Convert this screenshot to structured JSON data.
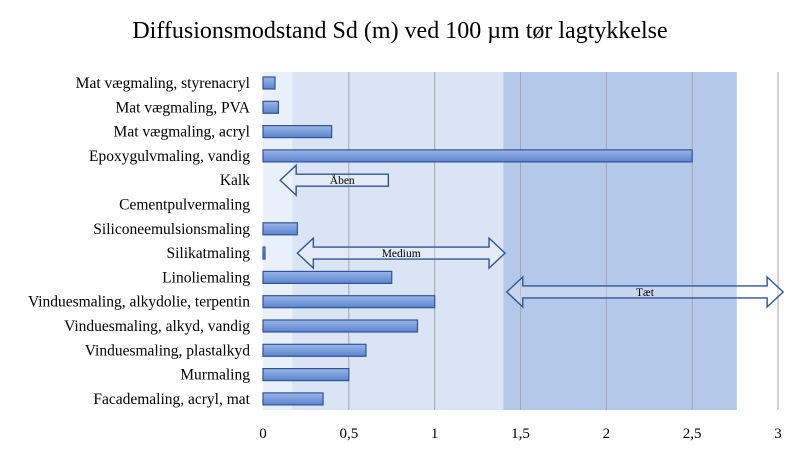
{
  "chart_data": {
    "type": "bar",
    "orientation": "horizontal",
    "title": "Diffusionsmodstand Sd (m) ved 100 µm tør lagtykkelse",
    "xlabel": "",
    "ylabel": "",
    "xlim": [
      0,
      3
    ],
    "x_ticks": [
      0,
      0.5,
      1,
      1.5,
      2,
      2.5,
      3
    ],
    "x_tick_labels": [
      "0",
      "0,5",
      "1",
      "1,5",
      "2",
      "2,5",
      "3"
    ],
    "categories": [
      "Mat vægmaling, styrenacryl",
      "Mat vægmaling, PVA",
      "Mat vægmaling, acryl",
      "Epoxygulvmaling, vandig",
      "Kalk",
      "Cementpulvermaling",
      "Siliconeemulsionsmaling",
      "Silikatmaling",
      "Linoliemaling",
      "Vinduesmaling, alkydolie, terpentin",
      "Vinduesmaling, alkyd, vandig",
      "Vinduesmaling, plastalkyd",
      "Murmaling",
      "Facademaling, acryl, mat"
    ],
    "values": [
      0.07,
      0.09,
      0.4,
      2.5,
      0,
      0,
      0.2,
      0.01,
      0.75,
      1.0,
      0.9,
      0.6,
      0.5,
      0.35
    ],
    "bands": [
      {
        "label": "Åben",
        "range": [
          0,
          0.17
        ],
        "color": "#eaf0f9"
      },
      {
        "label": "Medium",
        "range": [
          0.17,
          1.4
        ],
        "color": "#dae4f4"
      },
      {
        "label": "Tæt",
        "range": [
          1.4,
          2.76
        ],
        "color": "#b4c8e9"
      }
    ],
    "band_arrows": [
      {
        "label": "Åben",
        "from": 0.1,
        "to": 0.73,
        "direction": "left",
        "row": 4
      },
      {
        "label": "Medium",
        "from": 0.2,
        "to": 1.41,
        "direction": "both",
        "row": 7
      },
      {
        "label": "Tæt",
        "from": 1.42,
        "to": 3.03,
        "direction": "both",
        "row": 8.6
      }
    ],
    "grid": true,
    "colors": {
      "bar_fill_top": "#9bb6e6",
      "bar_fill_bottom": "#5b84cf",
      "bar_stroke": "#2f5597",
      "grid": "#a6a6a6",
      "arrow_stroke": "#2f5597"
    }
  }
}
